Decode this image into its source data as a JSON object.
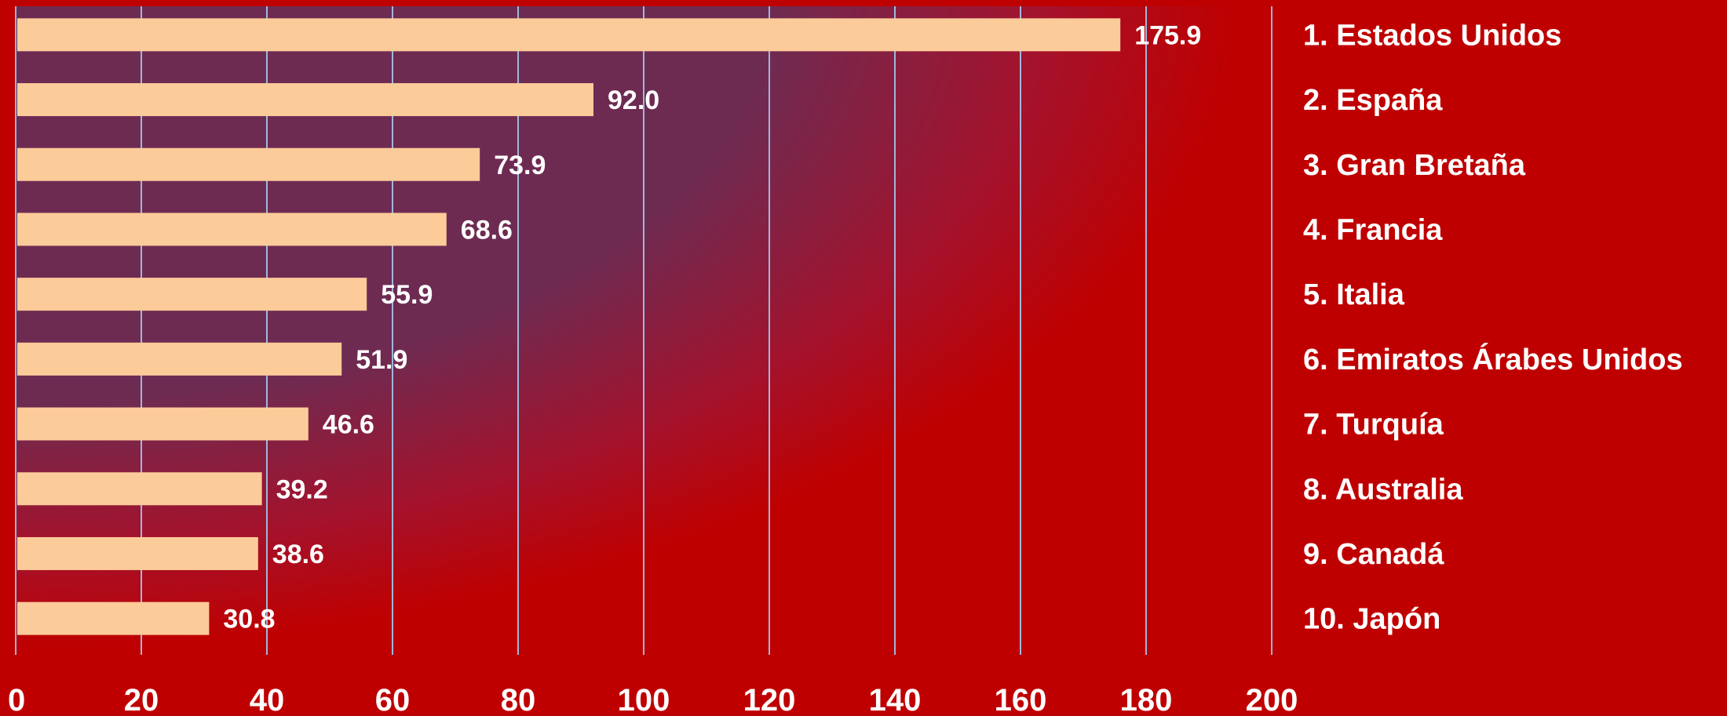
{
  "colors": {
    "background": "#bf0000",
    "plot_band": "#6e2b52",
    "bar": "#fccb9a",
    "gridline": "#9fb7dd",
    "text": "#ffffff"
  },
  "chart_data": {
    "type": "bar",
    "orientation": "horizontal",
    "categories": [
      "1. Estados Unidos",
      "2. España",
      "3. Gran Bretaña",
      "4. Francia",
      "5. Italia",
      "6. Emiratos Árabes Unidos",
      "7. Turquía",
      "8. Australia",
      "9. Canadá",
      "10. Japón"
    ],
    "values": [
      175.9,
      92.0,
      73.9,
      68.6,
      55.9,
      51.9,
      46.6,
      39.2,
      38.6,
      30.8
    ],
    "value_labels": [
      "175.9",
      "92.0",
      "73.9",
      "68.6",
      "55.9",
      "51.9",
      "46.6",
      "39.2",
      "38.6",
      "30.8"
    ],
    "xlim": [
      0,
      200
    ],
    "x_ticks": [
      "0",
      "20",
      "40",
      "60",
      "80",
      "100",
      "120",
      "140",
      "160",
      "180",
      "200"
    ],
    "grid": true,
    "legend": "none",
    "category_labels_position": "right"
  }
}
